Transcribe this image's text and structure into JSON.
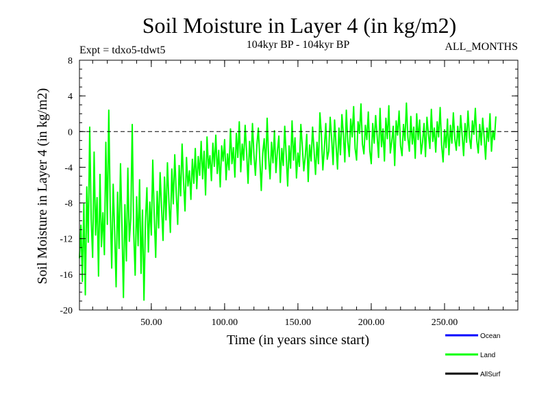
{
  "chart_data": {
    "type": "line",
    "title": "Soil Moisture in Layer 4 (in kg/m2)",
    "subtitle": "104kyr BP - 104kyr BP",
    "experiment": "Expt = tdxo5-tdwt5",
    "period": "ALL_MONTHS",
    "xlabel": "Time (in years since start)",
    "ylabel": "Soil Moisture in Layer 4 (in kg/m2)",
    "xlim": [
      1,
      300
    ],
    "ylim": [
      -20,
      8
    ],
    "x_ticks": [
      50,
      100,
      150,
      200,
      250
    ],
    "x_tick_labels": [
      "50.00",
      "100.00",
      "150.00",
      "200.00",
      "250.00"
    ],
    "y_ticks": [
      -20,
      -16,
      -12,
      -8,
      -4,
      0,
      4,
      8
    ],
    "y_tick_labels": [
      "-20",
      "-16",
      "-12",
      "-8",
      "-4",
      "0",
      "4",
      "8"
    ],
    "reference_line": 0,
    "legend": [
      {
        "name": "Ocean",
        "color": "#0000ff"
      },
      {
        "name": "Land",
        "color": "#00ff00"
      },
      {
        "name": "AllSurf",
        "color": "#000000"
      }
    ],
    "series": [
      {
        "name": "Land",
        "color": "#00ff00",
        "x_start": 1,
        "x_step": 1,
        "values": [
          -14.2,
          -10.5,
          -16.8,
          -8.1,
          -18.3,
          -6.2,
          -12.4,
          0.5,
          -9.8,
          -14.1,
          -2.3,
          -11.6,
          -7.4,
          -16.2,
          -4.8,
          -12.9,
          -9.1,
          -13.8,
          -1.2,
          -10.4,
          2.4,
          -8.6,
          -15.3,
          -5.9,
          -11.2,
          -17.4,
          -6.8,
          -13.1,
          -3.6,
          -10.7,
          -18.6,
          -8.2,
          -14.5,
          -4.1,
          -12.3,
          -9.7,
          0.8,
          -11.4,
          -16.1,
          -7.3,
          -12.8,
          -5.4,
          -15.9,
          -8.8,
          -18.9,
          -10.1,
          -6.3,
          -13.5,
          -7.9,
          -11.6,
          -3.2,
          -9.4,
          -14.1,
          -6.7,
          -10.8,
          -4.6,
          -8.5,
          -12.2,
          -5.1,
          -9.9,
          -3.5,
          -7.8,
          -11.3,
          -4.2,
          -8.1,
          -2.6,
          -6.9,
          -10.4,
          -3.8,
          -7.2,
          -1.4,
          -5.6,
          -8.9,
          -2.9,
          -6.1,
          -4.4,
          -7.6,
          -3.1,
          -5.8,
          -1.9,
          -6.4,
          -2.8,
          -4.9,
          -1.1,
          -5.3,
          -2.2,
          -7.1,
          -0.6,
          -4.1,
          -2.7,
          -5.5,
          -1.3,
          -3.9,
          -0.4,
          -4.7,
          -2.1,
          -6.2,
          -1.6,
          -3.3,
          -0.9,
          -5.4,
          -2.5,
          -4.3,
          0.3,
          -3.6,
          -1.8,
          -5.1,
          -0.2,
          -2.9,
          1.1,
          -4.5,
          -1.4,
          -3.2,
          0.7,
          -2.3,
          -5.8,
          -1.1,
          -3.7,
          0.9,
          -2.6,
          -4.9,
          -1.5,
          0.4,
          -3.1,
          -6.6,
          -2.4,
          -0.8,
          -4.2,
          1.5,
          -2.9,
          -5.3,
          -1.2,
          -3.5,
          0.1,
          -4.6,
          -2.2,
          -0.5,
          -5.7,
          -1.9,
          -3.8,
          0.6,
          -2.7,
          -6.1,
          -1.6,
          -4.1,
          1.2,
          -3.2,
          -0.7,
          -5.2,
          -2.4,
          -3.9,
          0.8,
          -1.7,
          -4.4,
          -2.8,
          -0.3,
          -5.6,
          -1.5,
          -3.3,
          0.5,
          -2.1,
          -4.8,
          -1.2,
          -3.6,
          2.1,
          -0.4,
          -4.3,
          -1.9,
          0.9,
          -3.1,
          -2.2,
          1.6,
          -0.8,
          -3.7,
          1.3,
          -1.5,
          -4.2,
          0.4,
          -2.6,
          1.9,
          -0.3,
          -3.4,
          2.4,
          -1.1,
          -2.8,
          1.4,
          -0.6,
          2.8,
          -1.9,
          -3.2,
          1.1,
          -0.2,
          3.1,
          -1.4,
          -2.5,
          0.7,
          -0.9,
          2.2,
          -2.1,
          -3.6,
          0.9,
          -1.3,
          1.8,
          -0.5,
          -2.9,
          2.6,
          -1.7,
          0.3,
          -3.3,
          1.5,
          -0.8,
          2.9,
          -2.4,
          -1.1,
          0.6,
          -3.8,
          1.2,
          -0.4,
          2.3,
          -1.6,
          -2.7,
          0.8,
          -1.0,
          3.2,
          -0.7,
          -2.2,
          1.7,
          -1.4,
          0.5,
          -3.0,
          2.0,
          -0.9,
          1.3,
          -2.5,
          -1.2,
          0.9,
          -2.8,
          1.6,
          -0.3,
          -1.9,
          2.5,
          -1.1,
          0.4,
          -2.3,
          1.1,
          -0.6,
          2.7,
          -1.5,
          -3.4,
          0.2,
          -1.8,
          1.4,
          -2.6,
          0.7,
          -1.3,
          2.1,
          -0.8,
          -2.1,
          0.6,
          -1.6,
          1.8,
          -0.4,
          -2.7,
          0.9,
          -1.2,
          2.3,
          -0.7,
          -1.9,
          1.2,
          -0.3,
          2.6,
          -1.0,
          -2.4,
          0.8,
          -1.5,
          1.5,
          -0.6,
          -3.1,
          0.4,
          -1.1,
          2.0,
          -2.2,
          0.1,
          -0.9,
          1.7
        ]
      }
    ]
  }
}
